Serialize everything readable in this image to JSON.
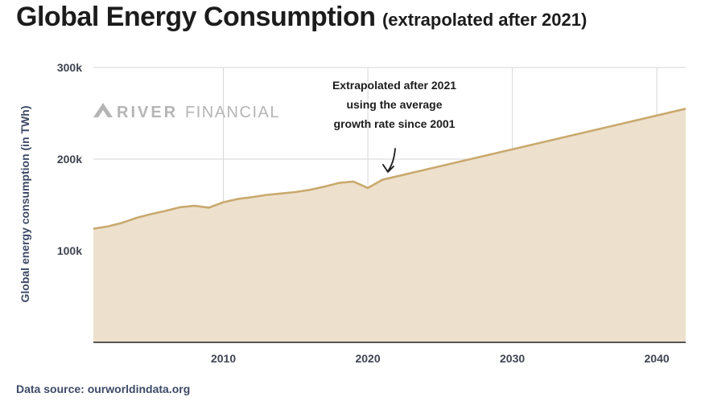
{
  "title": {
    "main": "Global Energy Consumption",
    "sub": "(extrapolated after 2021)"
  },
  "source": "Data source: ourworldindata.org",
  "watermark": {
    "bold": "RIVER",
    "light": "FINANCIAL"
  },
  "colors": {
    "line": "#c9a96e",
    "fill": "#ede1cd",
    "grid": "#d6d6d6",
    "axis": "#222222"
  },
  "chart_data": {
    "type": "area",
    "title": "Global Energy Consumption",
    "subtitle": "(extrapolated after 2021)",
    "xlabel": "",
    "ylabel": "Global energy consumption (in TWh)",
    "xlim": [
      2001,
      2042
    ],
    "ylim": [
      0,
      300000
    ],
    "xticks": [
      2010,
      2020,
      2030,
      2040
    ],
    "yticks": [
      {
        "value": 100000,
        "label": "100k"
      },
      {
        "value": 200000,
        "label": "200k"
      },
      {
        "value": 300000,
        "label": "300k"
      }
    ],
    "grid": true,
    "series": [
      {
        "x": [
          2001,
          2002,
          2003,
          2004,
          2005,
          2006,
          2007,
          2008,
          2009,
          2010,
          2011,
          2012,
          2013,
          2014,
          2015,
          2016,
          2017,
          2018,
          2019,
          2020,
          2021,
          2042
        ],
        "y": [
          124000,
          126500,
          130500,
          136000,
          140000,
          143500,
          147500,
          149000,
          147000,
          153000,
          156500,
          158500,
          161000,
          162500,
          164000,
          166500,
          170000,
          174000,
          175500,
          168500,
          177500,
          255000
        ]
      }
    ],
    "annotations": [
      {
        "lines": [
          "Extrapolated after 2021",
          "using the average",
          "growth rate since 2001"
        ],
        "x": 2021,
        "y": 177500
      }
    ]
  }
}
